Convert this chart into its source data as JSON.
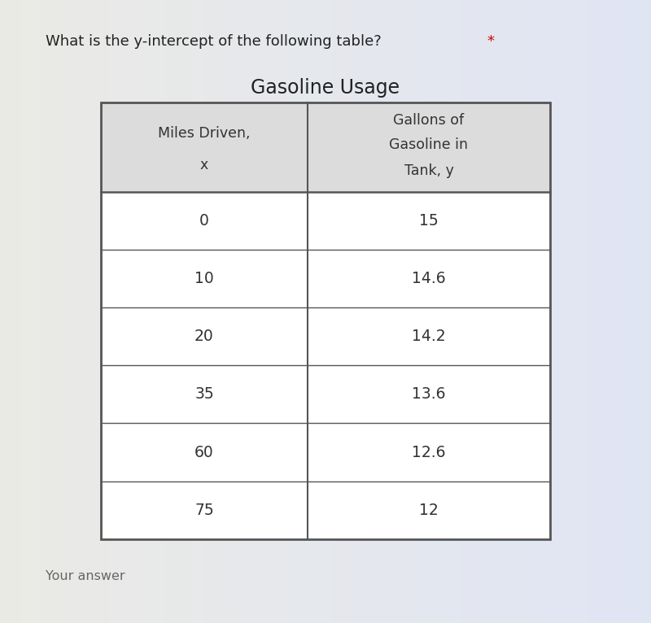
{
  "question_text": "What is the y-intercept of the following table? ",
  "question_asterisk": "*",
  "table_title": "Gasoline Usage",
  "col1_header_line1": "Miles Driven,",
  "col1_header_line2": "x",
  "col2_header_line1": "Gallons of",
  "col2_header_line2": "Gasoline in",
  "col2_header_line3": "Tank, y",
  "rows": [
    [
      "0",
      "15"
    ],
    [
      "10",
      "14.6"
    ],
    [
      "20",
      "14.2"
    ],
    [
      "35",
      "13.6"
    ],
    [
      "60",
      "12.6"
    ],
    [
      "75",
      "12"
    ]
  ],
  "footer_text": "Your answer",
  "bg_color_left": "#e8e6e0",
  "bg_color_right": "#d0e8f0",
  "table_bg_color": "#ffffff",
  "header_bg_color": "#dcdcdc",
  "border_color": "#555555",
  "text_color": "#333333",
  "question_color": "#222222",
  "title_color": "#222222",
  "footer_color": "#666666",
  "asterisk_color": "#cc0000"
}
